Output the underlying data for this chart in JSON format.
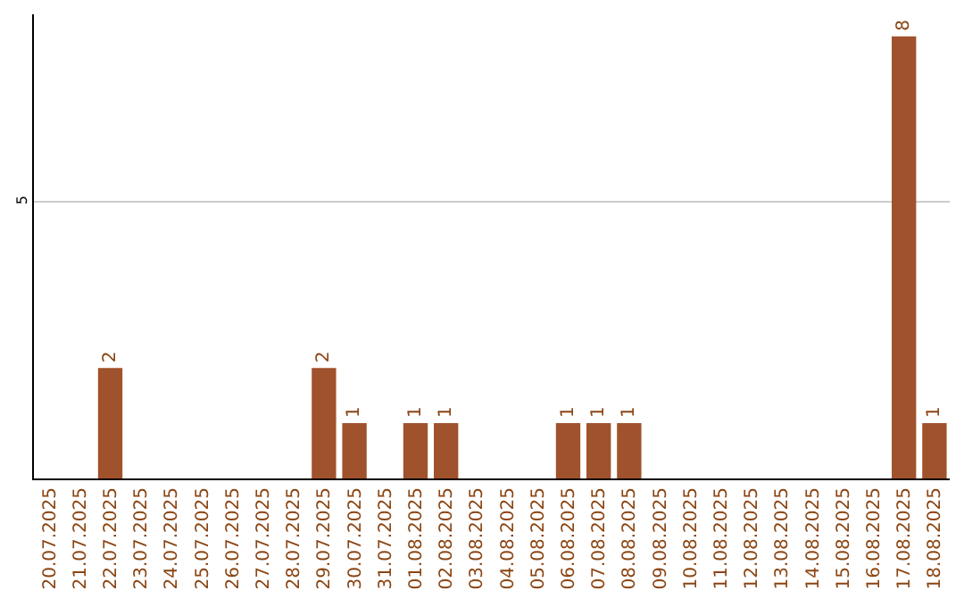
{
  "chart_data": {
    "type": "bar",
    "categories": [
      "20.07.2025",
      "21.07.2025",
      "22.07.2025",
      "23.07.2025",
      "24.07.2025",
      "25.07.2025",
      "26.07.2025",
      "27.07.2025",
      "28.07.2025",
      "29.07.2025",
      "30.07.2025",
      "31.07.2025",
      "01.08.2025",
      "02.08.2025",
      "03.08.2025",
      "04.08.2025",
      "05.08.2025",
      "06.08.2025",
      "07.08.2025",
      "08.08.2025",
      "09.08.2025",
      "10.08.2025",
      "11.08.2025",
      "12.08.2025",
      "13.08.2025",
      "14.08.2025",
      "15.08.2025",
      "16.08.2025",
      "17.08.2025",
      "18.08.2025"
    ],
    "values": [
      0,
      0,
      2,
      0,
      0,
      0,
      0,
      0,
      0,
      2,
      1,
      0,
      1,
      1,
      0,
      0,
      0,
      1,
      1,
      1,
      0,
      0,
      0,
      0,
      0,
      0,
      0,
      0,
      8,
      1
    ],
    "value_labels": [
      null,
      null,
      "2",
      null,
      null,
      null,
      null,
      null,
      null,
      "2",
      "1",
      null,
      "1",
      "1",
      null,
      null,
      null,
      "1",
      "1",
      "1",
      null,
      null,
      null,
      null,
      null,
      null,
      null,
      null,
      "8",
      "1"
    ],
    "color": "#a0522d",
    "ylim": [
      0,
      8.4
    ],
    "yticks": [
      5
    ],
    "grid": "y",
    "legend": false
  }
}
